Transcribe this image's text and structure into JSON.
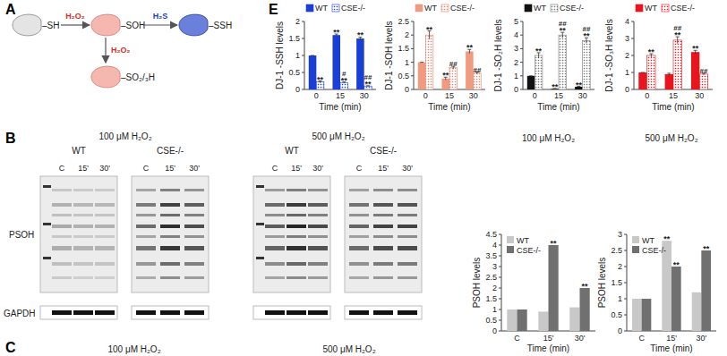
{
  "panel_labels": [
    "A",
    "B",
    "C",
    "E"
  ],
  "diagram": {
    "nodes": [
      {
        "label": "–SH"
      },
      {
        "label": "–SOH"
      },
      {
        "label": "–SSH"
      },
      {
        "label": "–SO₂/₃H"
      }
    ],
    "edges": [
      {
        "from": 0,
        "to": 1,
        "label": "H₂O₂"
      },
      {
        "from": 1,
        "to": 2,
        "label": "H₂S"
      },
      {
        "from": 1,
        "to": 3,
        "label": "H₂O₂"
      }
    ]
  },
  "blots": {
    "conditions": [
      {
        "title": "100 μM H₂O₂",
        "groups": [
          {
            "name": "WT",
            "lanes": [
              "C",
              "15'",
              "30'"
            ]
          },
          {
            "name": "CSE-/-",
            "lanes": [
              "C",
              "15'",
              "30'"
            ]
          }
        ]
      },
      {
        "title": "500 μM H₂O₂",
        "groups": [
          {
            "name": "WT",
            "lanes": [
              "C",
              "15'",
              "30'"
            ]
          },
          {
            "name": "CSE-/-",
            "lanes": [
              "C",
              "15'",
              "30'"
            ]
          }
        ]
      }
    ],
    "rows": [
      "PSOH",
      "GAPDH"
    ]
  },
  "panel_c": {
    "titles": [
      "100 μM H₂O₂",
      "500 μM H₂O₂"
    ]
  },
  "chart_data": [
    {
      "type": "bar",
      "y_label": "DJ-1 -SSH levels",
      "x_label": "Time (min)",
      "categories": [
        "0",
        "15",
        "30"
      ],
      "ylim": [
        0,
        2
      ],
      "yticks": [
        0,
        0.5,
        1,
        1.5,
        2
      ],
      "legend": "top",
      "series": [
        {
          "name": "WT",
          "color": "#1a3fd6",
          "values": [
            1,
            1.6,
            1.5
          ],
          "errors": [
            0,
            0.03,
            0.04
          ],
          "stars": [
            null,
            "**",
            "**"
          ],
          "hashes": [
            null,
            null,
            null
          ]
        },
        {
          "name": "CSE-/-",
          "color": "#1a3fd6",
          "marker": "dots",
          "values": [
            0.22,
            0.2,
            0.1
          ],
          "errors": [
            0.03,
            0.02,
            0.01
          ],
          "stars": [
            "**",
            "**",
            "**"
          ],
          "hashes": [
            null,
            "#",
            "##"
          ]
        }
      ]
    },
    {
      "type": "bar",
      "y_label": "DJ-1 -SOH levels",
      "x_label": "Time (min)",
      "categories": [
        "0",
        "15",
        "30"
      ],
      "ylim": [
        0,
        2.5
      ],
      "yticks": [
        0,
        0.5,
        1,
        1.5,
        2,
        2.5
      ],
      "legend": "top",
      "series": [
        {
          "name": "WT",
          "color": "#f09a80",
          "values": [
            1,
            0.4,
            1.4
          ],
          "errors": [
            0,
            0.05,
            0.07
          ],
          "stars": [
            null,
            "**",
            "**"
          ],
          "hashes": [
            null,
            null,
            null
          ]
        },
        {
          "name": "CSE-/-",
          "color": "#e8806a",
          "marker": "dots",
          "values": [
            2.0,
            0.8,
            0.6
          ],
          "errors": [
            0.15,
            0.05,
            0.04
          ],
          "stars": [
            "**",
            null,
            null
          ],
          "hashes": [
            null,
            "##",
            "##"
          ]
        }
      ]
    },
    {
      "type": "bar",
      "y_label": "DJ-1 -SO₂H levels",
      "x_label": "Time (min)",
      "categories": [
        "0",
        "15",
        "30"
      ],
      "ylim": [
        0,
        5
      ],
      "yticks": [
        0,
        1,
        2,
        3,
        4,
        5
      ],
      "legend": "top",
      "series": [
        {
          "name": "WT",
          "color": "#111111",
          "values": [
            1,
            0.05,
            0.2
          ],
          "errors": [
            0,
            0.02,
            0.03
          ],
          "stars": [
            null,
            "**",
            "**"
          ],
          "hashes": [
            null,
            null,
            null
          ]
        },
        {
          "name": "CSE-/-",
          "color": "#777777",
          "marker": "dots",
          "values": [
            2.5,
            4.0,
            3.6
          ],
          "errors": [
            0.2,
            0.2,
            0.2
          ],
          "stars": [
            "**",
            "**",
            "**"
          ],
          "hashes": [
            null,
            "##",
            "##"
          ]
        }
      ]
    },
    {
      "type": "bar",
      "y_label": "DJ-1 -SO₃H levels",
      "x_label": "Time (min)",
      "categories": [
        "0",
        "15",
        "30"
      ],
      "ylim": [
        0,
        4
      ],
      "yticks": [
        0,
        1,
        2,
        3,
        4
      ],
      "legend": "top",
      "series": [
        {
          "name": "WT",
          "color": "#e8141e",
          "values": [
            1,
            0.9,
            2.2
          ],
          "errors": [
            0,
            0.05,
            0.1
          ],
          "stars": [
            null,
            null,
            "**"
          ],
          "hashes": [
            null,
            null,
            null
          ]
        },
        {
          "name": "CSE-/-",
          "color": "#e8141e",
          "marker": "dots",
          "values": [
            2.0,
            2.9,
            0.9
          ],
          "errors": [
            0.1,
            0.2,
            0.05
          ],
          "stars": [
            "**",
            "**",
            null
          ],
          "hashes": [
            null,
            "##",
            "##"
          ]
        }
      ]
    },
    {
      "type": "bar",
      "title": "100 μM H₂O₂",
      "y_label": "PSOH levels",
      "x_label": "Time (min)",
      "categories": [
        "C",
        "15'",
        "30'"
      ],
      "ylim": [
        0,
        4.5
      ],
      "yticks": [
        0,
        0.5,
        1,
        1.5,
        2,
        2.5,
        3,
        3.5,
        4,
        4.5
      ],
      "legend": "top-left",
      "series": [
        {
          "name": "WT",
          "color": "#c8c8c8",
          "values": [
            1,
            0.9,
            1.1
          ],
          "stars": [
            null,
            null,
            null
          ]
        },
        {
          "name": "CSE-/-",
          "color": "#707070",
          "values": [
            1,
            4.0,
            2.0
          ],
          "stars": [
            null,
            "**",
            "**"
          ]
        }
      ]
    },
    {
      "type": "bar",
      "title": "500 μM H₂O₂",
      "y_label": "PSOH levels",
      "x_label": "Time (min)",
      "categories": [
        "C",
        "15'",
        "30'"
      ],
      "ylim": [
        0,
        3
      ],
      "yticks": [
        0,
        0.5,
        1,
        1.5,
        2,
        2.5,
        3
      ],
      "legend": "top-left",
      "series": [
        {
          "name": "WT",
          "color": "#c8c8c8",
          "values": [
            1,
            2.8,
            1.2
          ],
          "stars": [
            null,
            "**",
            null
          ]
        },
        {
          "name": "CSE-/-",
          "color": "#707070",
          "values": [
            1,
            2.0,
            2.5
          ],
          "stars": [
            null,
            "**",
            "**"
          ]
        }
      ]
    }
  ]
}
